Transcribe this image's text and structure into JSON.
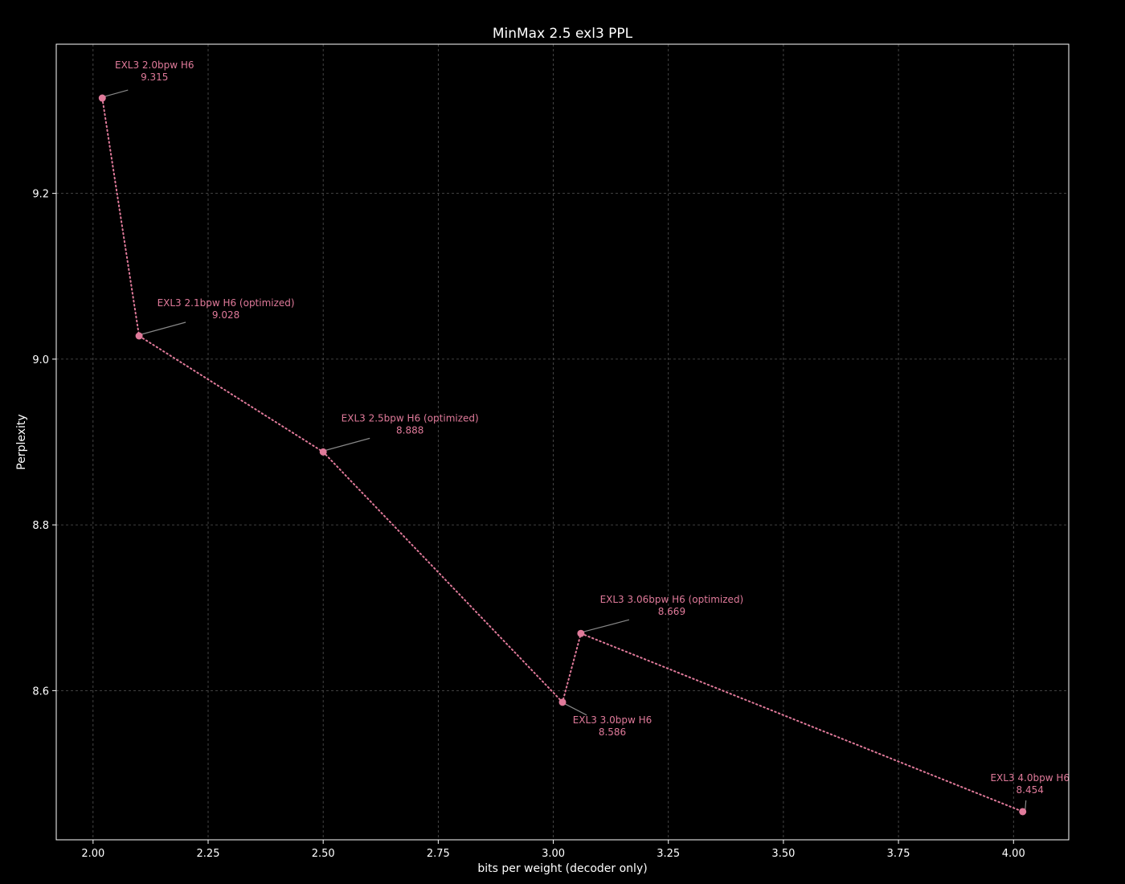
{
  "chart_data": {
    "type": "line",
    "title": "MinMax 2.5 exl3 PPL",
    "xlabel": "bits per weight (decoder only)",
    "ylabel": "Perplexity",
    "xlim": [
      1.92,
      4.12
    ],
    "ylim": [
      8.42,
      9.38
    ],
    "xticks": [
      2.0,
      2.25,
      2.5,
      2.75,
      3.0,
      3.25,
      3.5,
      3.75,
      4.0
    ],
    "xtick_labels": [
      "2.00",
      "2.25",
      "2.50",
      "2.75",
      "3.00",
      "3.25",
      "3.50",
      "3.75",
      "4.00"
    ],
    "yticks": [
      8.6,
      8.8,
      9.0,
      9.2
    ],
    "ytick_labels": [
      "8.6",
      "8.8",
      "9.0",
      "9.2"
    ],
    "grid": true,
    "line_style": "dotted",
    "colors": {
      "background": "#000000",
      "series": "#e07a9a",
      "grid": "#555555",
      "axes": "#ffffff",
      "leader": "#888888"
    },
    "points": [
      {
        "x": 2.02,
        "y": 9.315,
        "label": "EXL3 2.0bpw H6",
        "value_label": "9.315",
        "label_side": "above"
      },
      {
        "x": 2.1,
        "y": 9.028,
        "label": "EXL3 2.1bpw H6 (optimized)",
        "value_label": "9.028",
        "label_side": "above"
      },
      {
        "x": 2.5,
        "y": 8.888,
        "label": "EXL3 2.5bpw H6 (optimized)",
        "value_label": "8.888",
        "label_side": "above"
      },
      {
        "x": 3.02,
        "y": 8.586,
        "label": "EXL3 3.0bpw H6",
        "value_label": "8.586",
        "label_side": "below"
      },
      {
        "x": 3.06,
        "y": 8.669,
        "label": "EXL3 3.06bpw H6 (optimized)",
        "value_label": "8.669",
        "label_side": "above"
      },
      {
        "x": 4.02,
        "y": 8.454,
        "label": "EXL3 4.0bpw H6",
        "value_label": "8.454",
        "label_side": "above"
      }
    ]
  }
}
